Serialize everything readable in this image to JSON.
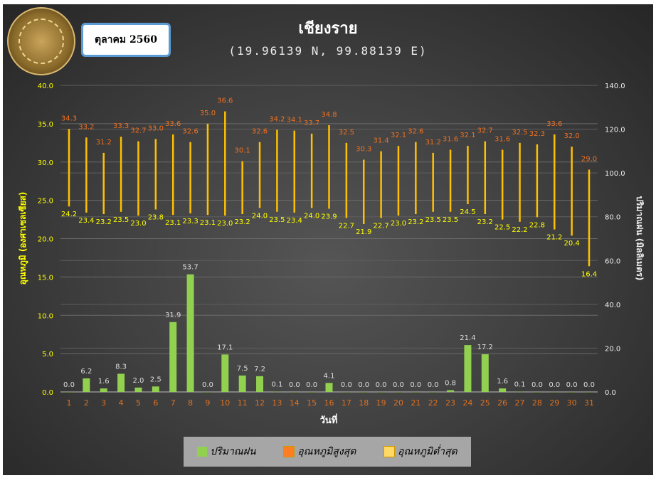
{
  "header": {
    "title": "เชียงราย",
    "coords": "(19.96139 N, 99.88139 E)",
    "month": "ตุลาคม 2560",
    "logo_text": "กรมอุตุนิยมวิทยา METEOROLOGICAL DEPARTMENT"
  },
  "chart_data": {
    "type": "bar",
    "title": "เชียงราย",
    "subtitle": "(19.96139 N, 99.88139 E)",
    "xlabel": "วันที่",
    "ylabel": "อุณหภูมิ (องศาเซลเซียส)",
    "y2label": "ปริมาณฝน (มิลลิเมตร)",
    "ylim": [
      0,
      40
    ],
    "y2lim": [
      0,
      140
    ],
    "yticks": [
      "0.0",
      "5.0",
      "10.0",
      "15.0",
      "20.0",
      "25.0",
      "30.0",
      "35.0",
      "40.0"
    ],
    "y2ticks": [
      "0.0",
      "20.0",
      "40.0",
      "60.0",
      "80.0",
      "100.0",
      "120.0",
      "140.0"
    ],
    "grid": true,
    "legend_placement": "bottom",
    "categories": [
      "1",
      "2",
      "3",
      "4",
      "5",
      "6",
      "7",
      "8",
      "9",
      "10",
      "11",
      "12",
      "13",
      "14",
      "15",
      "16",
      "17",
      "18",
      "19",
      "20",
      "21",
      "22",
      "23",
      "24",
      "25",
      "26",
      "27",
      "28",
      "29",
      "30",
      "31"
    ],
    "series": [
      {
        "name": "ปริมาณฝน",
        "type": "bar",
        "axis": "right",
        "color": "#92d050",
        "values": [
          0.0,
          6.2,
          1.6,
          8.3,
          2.0,
          2.5,
          31.9,
          53.7,
          0.0,
          17.1,
          7.5,
          7.2,
          0.1,
          0.0,
          0.0,
          4.1,
          0.0,
          0.0,
          0.0,
          0.0,
          0.0,
          0.0,
          0.8,
          21.4,
          17.2,
          1.6,
          0.1,
          0.0,
          0.0,
          0.0,
          0.0
        ]
      },
      {
        "name": "อุณหภูมิสูงสุด",
        "type": "high-low",
        "axis": "left",
        "color": "#fd7e22",
        "values": [
          34.3,
          33.2,
          31.2,
          33.3,
          32.7,
          33.0,
          33.6,
          32.6,
          35.0,
          36.6,
          30.1,
          32.6,
          34.2,
          34.1,
          33.7,
          34.8,
          32.5,
          30.3,
          31.4,
          32.1,
          32.6,
          31.2,
          31.6,
          32.1,
          32.7,
          31.6,
          32.5,
          32.3,
          33.6,
          32.0,
          29.0
        ]
      },
      {
        "name": "อุณหภูมิต่ำสุด",
        "type": "high-low",
        "axis": "left",
        "color": "#ffd966",
        "values": [
          24.2,
          23.4,
          23.2,
          23.5,
          23.0,
          23.8,
          23.1,
          23.3,
          23.1,
          23.0,
          23.2,
          24.0,
          23.5,
          23.4,
          24.0,
          23.9,
          22.7,
          21.9,
          22.7,
          23.0,
          23.2,
          23.5,
          23.5,
          24.5,
          23.2,
          22.5,
          22.2,
          22.8,
          21.2,
          20.4,
          16.4
        ]
      }
    ]
  },
  "colors": {
    "rain": "#92d050",
    "tmax_label": "#f07020",
    "tmin_label": "#ffff00",
    "range_line": "#ffc000",
    "xtick": "#e07020"
  }
}
